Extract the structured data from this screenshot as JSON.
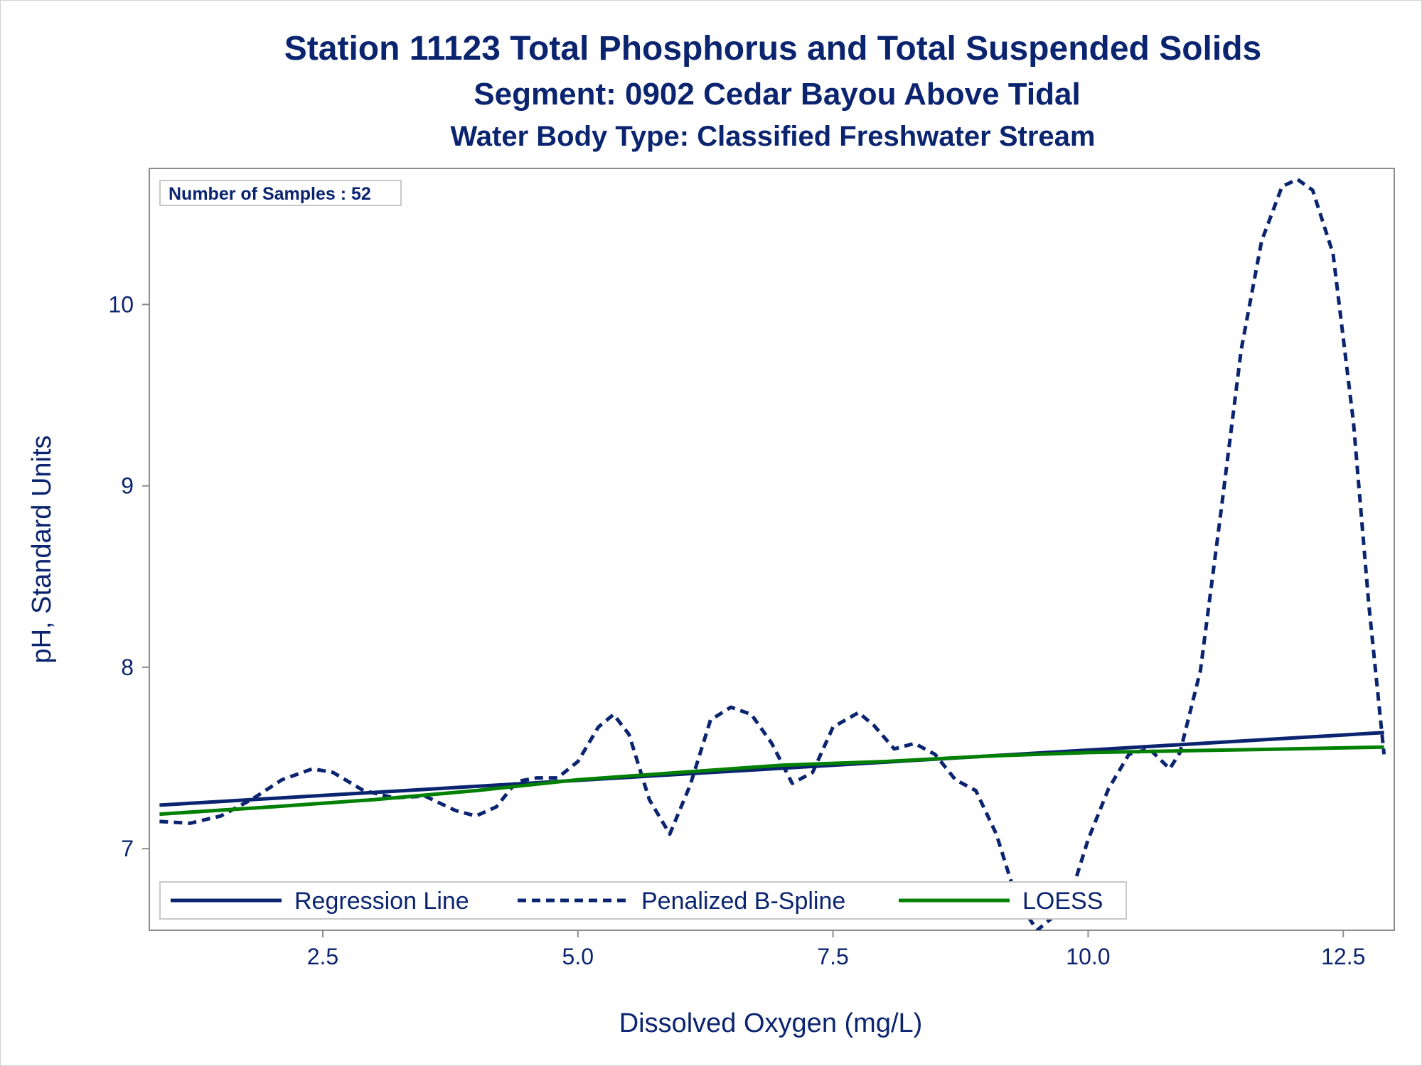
{
  "chart_data": {
    "type": "line",
    "title": "Station 11123  Total Phosphorus and Total Suspended Solids",
    "subtitle": "Segment: 0902  Cedar Bayou Above Tidal",
    "subtitle2": "Water Body Type: Classified Freshwater Stream",
    "xlabel": "Dissolved Oxygen (mg/L)",
    "ylabel": "pH, Standard Units",
    "xlim": [
      0.8,
      13.0
    ],
    "ylim": [
      6.55,
      10.75
    ],
    "x_ticks": [
      2.5,
      5.0,
      7.5,
      10.0,
      12.5
    ],
    "x_tick_labels": [
      "2.5",
      "5.0",
      "7.5",
      "10.0",
      "12.5"
    ],
    "y_ticks": [
      7,
      8,
      9,
      10
    ],
    "y_tick_labels": [
      "7",
      "8",
      "9",
      "10"
    ],
    "grid": false,
    "legend_position": "bottom-inside",
    "inset": {
      "text": "Number of Samples : 52"
    },
    "series": [
      {
        "name": "Regression Line",
        "style": "solid",
        "color": "#0b2470",
        "points": [
          [
            0.9,
            7.24
          ],
          [
            12.9,
            7.64
          ]
        ]
      },
      {
        "name": "Penalized B-Spline",
        "style": "dashed",
        "color": "#0b2470",
        "points": [
          [
            0.9,
            7.15
          ],
          [
            1.2,
            7.14
          ],
          [
            1.5,
            7.18
          ],
          [
            1.8,
            7.27
          ],
          [
            2.1,
            7.38
          ],
          [
            2.4,
            7.44
          ],
          [
            2.6,
            7.42
          ],
          [
            2.9,
            7.32
          ],
          [
            3.2,
            7.28
          ],
          [
            3.5,
            7.29
          ],
          [
            3.8,
            7.21
          ],
          [
            4.0,
            7.18
          ],
          [
            4.2,
            7.23
          ],
          [
            4.4,
            7.37
          ],
          [
            4.6,
            7.39
          ],
          [
            4.8,
            7.39
          ],
          [
            5.0,
            7.48
          ],
          [
            5.2,
            7.67
          ],
          [
            5.35,
            7.74
          ],
          [
            5.5,
            7.63
          ],
          [
            5.7,
            7.27
          ],
          [
            5.9,
            7.08
          ],
          [
            6.1,
            7.35
          ],
          [
            6.3,
            7.71
          ],
          [
            6.5,
            7.78
          ],
          [
            6.7,
            7.74
          ],
          [
            6.9,
            7.58
          ],
          [
            7.1,
            7.36
          ],
          [
            7.3,
            7.42
          ],
          [
            7.5,
            7.67
          ],
          [
            7.75,
            7.75
          ],
          [
            7.9,
            7.68
          ],
          [
            8.1,
            7.55
          ],
          [
            8.3,
            7.58
          ],
          [
            8.5,
            7.52
          ],
          [
            8.7,
            7.38
          ],
          [
            8.9,
            7.32
          ],
          [
            9.1,
            7.08
          ],
          [
            9.3,
            6.72
          ],
          [
            9.5,
            6.55
          ],
          [
            9.8,
            6.69
          ],
          [
            10.0,
            7.05
          ],
          [
            10.2,
            7.33
          ],
          [
            10.4,
            7.52
          ],
          [
            10.6,
            7.55
          ],
          [
            10.8,
            7.44
          ],
          [
            10.9,
            7.53
          ],
          [
            11.1,
            7.98
          ],
          [
            11.3,
            8.85
          ],
          [
            11.5,
            9.75
          ],
          [
            11.7,
            10.35
          ],
          [
            11.9,
            10.65
          ],
          [
            12.05,
            10.69
          ],
          [
            12.2,
            10.63
          ],
          [
            12.4,
            10.28
          ],
          [
            12.6,
            9.35
          ],
          [
            12.75,
            8.35
          ],
          [
            12.9,
            7.52
          ]
        ]
      },
      {
        "name": "LOESS",
        "style": "solid",
        "color": "#008000",
        "points": [
          [
            0.9,
            7.19
          ],
          [
            2.0,
            7.23
          ],
          [
            3.0,
            7.27
          ],
          [
            4.0,
            7.32
          ],
          [
            5.0,
            7.38
          ],
          [
            6.0,
            7.42
          ],
          [
            7.0,
            7.46
          ],
          [
            8.0,
            7.48
          ],
          [
            9.0,
            7.51
          ],
          [
            10.0,
            7.53
          ],
          [
            11.0,
            7.54
          ],
          [
            12.0,
            7.55
          ],
          [
            12.9,
            7.56
          ]
        ]
      }
    ]
  }
}
